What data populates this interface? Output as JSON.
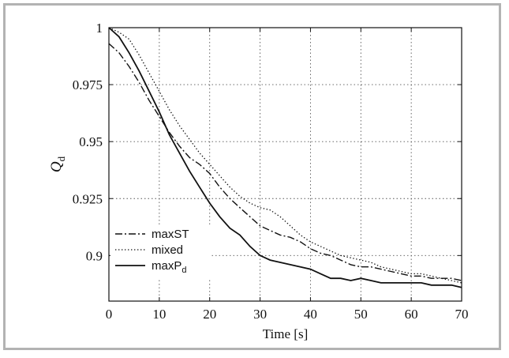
{
  "chart_data": {
    "type": "line",
    "title": "",
    "xlabel": "Time [s]",
    "ylabel": "Q",
    "ylabel_subscript": "d",
    "xlim": [
      0,
      70
    ],
    "ylim": [
      0.88,
      1.0
    ],
    "xticks": [
      0,
      10,
      20,
      30,
      40,
      50,
      60,
      70
    ],
    "yticks": [
      0.9,
      0.925,
      0.95,
      0.975,
      1
    ],
    "xtick_labels": [
      "0",
      "10",
      "20",
      "30",
      "40",
      "50",
      "60",
      "70"
    ],
    "ytick_labels": [
      "0.9",
      "0.925",
      "0.95",
      "0.975",
      "1"
    ],
    "grid": true,
    "legend_position": "bottom-left",
    "series": [
      {
        "name": "maxST",
        "style": "dashdot",
        "x": [
          0,
          2,
          4,
          6,
          8,
          10,
          12,
          14,
          16,
          18,
          20,
          22,
          24,
          26,
          28,
          30,
          32,
          34,
          36,
          38,
          40,
          42,
          44,
          46,
          48,
          50,
          52,
          54,
          56,
          58,
          60,
          62,
          64,
          66,
          68,
          70
        ],
        "y": [
          0.993,
          0.989,
          0.983,
          0.976,
          0.968,
          0.961,
          0.954,
          0.948,
          0.943,
          0.94,
          0.936,
          0.93,
          0.925,
          0.921,
          0.917,
          0.913,
          0.911,
          0.909,
          0.908,
          0.906,
          0.903,
          0.901,
          0.9,
          0.898,
          0.896,
          0.895,
          0.895,
          0.894,
          0.893,
          0.892,
          0.891,
          0.891,
          0.89,
          0.89,
          0.89,
          0.889
        ]
      },
      {
        "name": "mixed",
        "style": "dotted",
        "x": [
          0,
          2,
          4,
          6,
          8,
          10,
          12,
          14,
          16,
          18,
          20,
          22,
          24,
          26,
          28,
          30,
          32,
          34,
          36,
          38,
          40,
          42,
          44,
          46,
          48,
          50,
          52,
          54,
          56,
          58,
          60,
          62,
          64,
          66,
          68,
          70
        ],
        "y": [
          1.0,
          0.998,
          0.995,
          0.988,
          0.98,
          0.972,
          0.964,
          0.957,
          0.951,
          0.945,
          0.94,
          0.935,
          0.93,
          0.926,
          0.923,
          0.921,
          0.92,
          0.917,
          0.913,
          0.909,
          0.906,
          0.904,
          0.902,
          0.9,
          0.899,
          0.898,
          0.897,
          0.895,
          0.894,
          0.893,
          0.892,
          0.892,
          0.891,
          0.89,
          0.889,
          0.888
        ]
      },
      {
        "name": "maxP",
        "name_subscript": "d",
        "style": "solid",
        "x": [
          0,
          2,
          4,
          6,
          8,
          10,
          12,
          14,
          16,
          18,
          20,
          22,
          24,
          26,
          28,
          30,
          32,
          34,
          36,
          38,
          40,
          42,
          44,
          46,
          48,
          50,
          52,
          54,
          56,
          58,
          60,
          62,
          64,
          66,
          68,
          70
        ],
        "y": [
          1.0,
          0.996,
          0.989,
          0.981,
          0.972,
          0.963,
          0.953,
          0.945,
          0.937,
          0.93,
          0.923,
          0.917,
          0.912,
          0.909,
          0.904,
          0.9,
          0.898,
          0.897,
          0.896,
          0.895,
          0.894,
          0.892,
          0.89,
          0.89,
          0.889,
          0.89,
          0.889,
          0.888,
          0.888,
          0.888,
          0.888,
          0.888,
          0.887,
          0.887,
          0.887,
          0.886
        ]
      }
    ]
  }
}
